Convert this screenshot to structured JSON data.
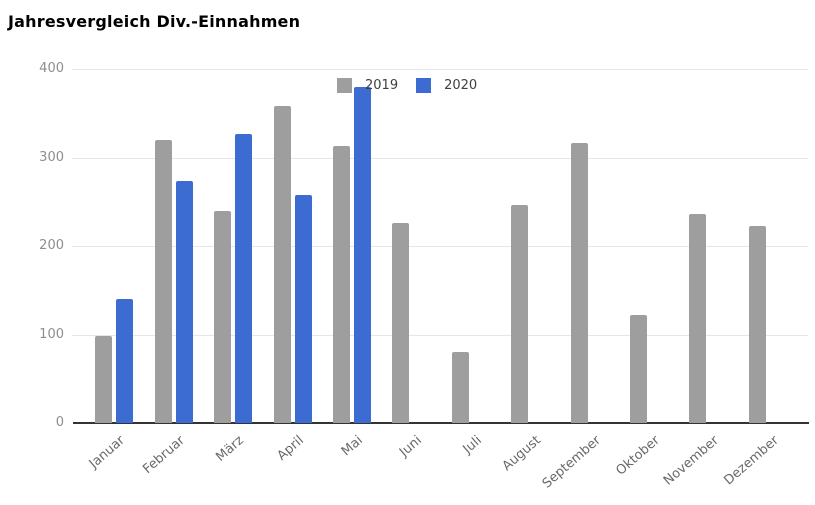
{
  "chart_data": {
    "type": "bar",
    "title": "Jahresvergleich Div.-Einnahmen",
    "categories": [
      "Januar",
      "Februar",
      "März",
      "April",
      "Mai",
      "Juni",
      "Juli",
      "August",
      "September",
      "Oktober",
      "November",
      "Dezember"
    ],
    "series": [
      {
        "name": "2019",
        "color": "#9e9e9e",
        "values": [
          98,
          320,
          240,
          358,
          313,
          226,
          80,
          246,
          316,
          122,
          236,
          223
        ]
      },
      {
        "name": "2020",
        "color": "#3c6cd2",
        "values": [
          140,
          274,
          326,
          258,
          380,
          null,
          null,
          null,
          null,
          null,
          null,
          null
        ]
      }
    ],
    "xlabel": "",
    "ylabel": "",
    "ylim": [
      0,
      400
    ],
    "yticks": [
      0,
      100,
      200,
      300,
      400
    ],
    "grid": true,
    "legend_position": "top-center",
    "gridline_color": "#e6e6e6",
    "axis_line_color": "#333333",
    "ytick_color": "#8e8e8e",
    "xtick_color": "#696969",
    "background_color": "#ffffff"
  }
}
